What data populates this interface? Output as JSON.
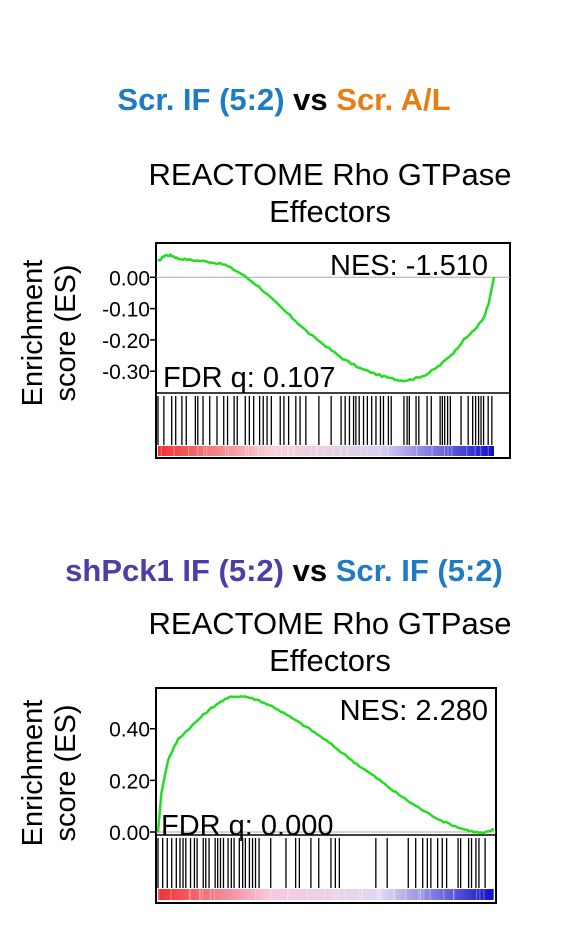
{
  "panels": [
    {
      "comparison": {
        "left": "Scr. IF (5:2)",
        "left_color": "#1f7bc4",
        "vs": "vs",
        "right": "Scr. A/L",
        "right_color": "#e87d14"
      },
      "title_line1": "REACTOME Rho GTPase",
      "title_line2": "Effectors",
      "ylabel_line1": "Enrichment",
      "ylabel_line2": "score (ES)",
      "nes": "NES: -1.510",
      "fdr": "FDR q: 0.107"
    },
    {
      "comparison": {
        "left": "shPck1 IF (5:2)",
        "left_color": "#4a3fa8",
        "vs": "vs",
        "right": "Scr. IF (5:2)",
        "right_color": "#1f7bc4"
      },
      "title_line1": "REACTOME Rho GTPase",
      "title_line2": "Effectors",
      "ylabel_line1": "Enrichment",
      "ylabel_line2": "score (ES)",
      "nes": "NES: 2.280",
      "fdr": "FDR q: 0.000"
    }
  ],
  "chart_data": [
    {
      "type": "line",
      "title": "REACTOME Rho GTPase Effectors",
      "ylabel": "Enrichment score (ES)",
      "series_color": "#22dd22",
      "ylim": [
        -0.36,
        0.1
      ],
      "yticks": [
        "0.00",
        "-0.10",
        "-0.20",
        "-0.30"
      ],
      "ytick_values": [
        0.0,
        -0.1,
        -0.2,
        -0.3
      ],
      "x": [
        0,
        0.02,
        0.04,
        0.06,
        0.1,
        0.15,
        0.2,
        0.25,
        0.3,
        0.35,
        0.4,
        0.45,
        0.5,
        0.55,
        0.6,
        0.65,
        0.7,
        0.73,
        0.76,
        0.8,
        0.84,
        0.88,
        0.91,
        0.94,
        0.97,
        0.985,
        1.0
      ],
      "y": [
        0.05,
        0.07,
        0.07,
        0.06,
        0.055,
        0.05,
        0.04,
        0.01,
        -0.03,
        -0.08,
        -0.13,
        -0.18,
        -0.22,
        -0.26,
        -0.29,
        -0.31,
        -0.325,
        -0.33,
        -0.325,
        -0.31,
        -0.28,
        -0.24,
        -0.2,
        -0.17,
        -0.13,
        -0.08,
        0.0
      ],
      "annotations": [
        "NES: -1.510",
        "FDR q: 0.107"
      ],
      "gradient": [
        "#f03030",
        "#f8d0d8",
        "#d8d0f0",
        "#1010c8"
      ]
    },
    {
      "type": "line",
      "title": "REACTOME Rho GTPase Effectors",
      "ylabel": "Enrichment score (ES)",
      "series_color": "#22dd22",
      "ylim": [
        0.0,
        0.55
      ],
      "yticks": [
        "0.40",
        "0.20",
        "0.00"
      ],
      "ytick_values": [
        0.4,
        0.2,
        0.0
      ],
      "x": [
        0,
        0.01,
        0.03,
        0.06,
        0.1,
        0.14,
        0.18,
        0.22,
        0.26,
        0.3,
        0.35,
        0.4,
        0.45,
        0.5,
        0.55,
        0.6,
        0.65,
        0.7,
        0.75,
        0.8,
        0.85,
        0.9,
        0.94,
        0.97,
        1.0
      ],
      "y": [
        0.0,
        0.15,
        0.28,
        0.36,
        0.41,
        0.46,
        0.5,
        0.525,
        0.525,
        0.51,
        0.48,
        0.44,
        0.4,
        0.355,
        0.305,
        0.255,
        0.21,
        0.16,
        0.115,
        0.075,
        0.04,
        0.015,
        0.0,
        -0.005,
        0.01
      ],
      "annotations": [
        "NES: 2.280",
        "FDR q: 0.000"
      ],
      "gradient": [
        "#f03030",
        "#f8c8e0",
        "#e0d8f0",
        "#1010c8"
      ]
    }
  ]
}
